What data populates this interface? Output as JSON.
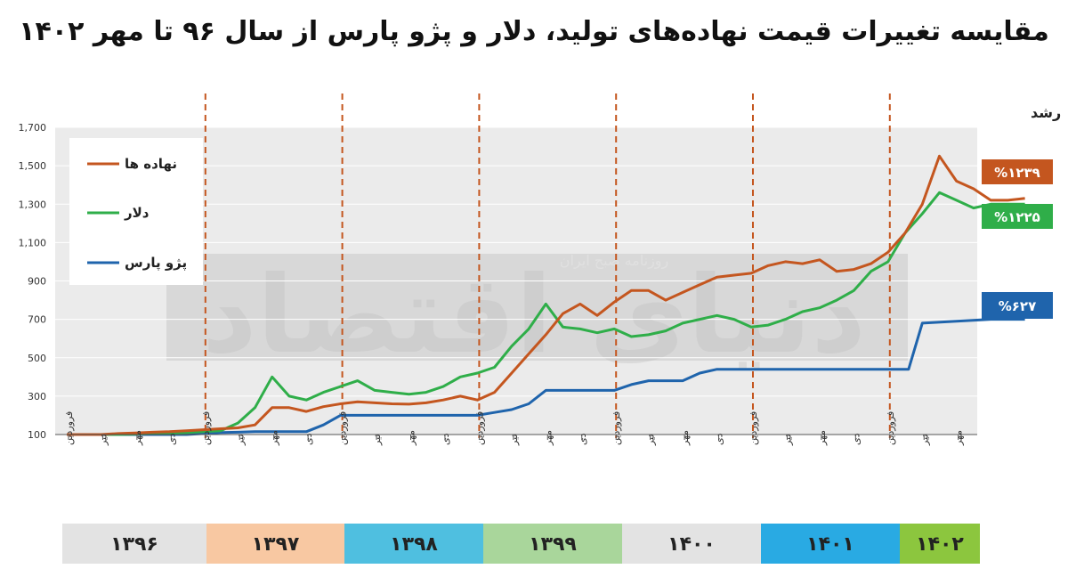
{
  "title": "مقایسه تغییرات قیمت نهاده‌های تولید، دلار و پژو پارس از سال ۹۶ تا مهر ۱۴۰۲",
  "watermark": {
    "brand": "دنیای اقتصاد",
    "tagline": "روزنامه صبح ایران"
  },
  "chart_data": {
    "type": "line",
    "ylim": [
      100,
      1700
    ],
    "yticks": [
      100,
      300,
      500,
      700,
      900,
      1100,
      1300,
      1500,
      1700
    ],
    "ytick_labels": [
      "100",
      "300",
      "500",
      "700",
      "900",
      "1,100",
      "1,300",
      "1,500",
      "1,700"
    ],
    "x_labels": [
      "فروردین",
      "تیر",
      "مهر",
      "دی",
      "فروردین",
      "تیر",
      "مهر",
      "دی",
      "فروردین",
      "تیر",
      "مهر",
      "دی",
      "فروردین",
      "تیر",
      "مهر",
      "دی",
      "فروردین",
      "تیر",
      "مهر",
      "دی",
      "فروردین",
      "تیر",
      "مهر",
      "دی",
      "فروردین",
      "تیر",
      "مهر"
    ],
    "year_markers": [
      4,
      8,
      12,
      16,
      20,
      24
    ],
    "growth_label": "رشد",
    "series": [
      {
        "name": "نهاده ها",
        "color": "#c4561f",
        "growth": "%۱۲۳۹",
        "points": [
          [
            0,
            100
          ],
          [
            1,
            100
          ],
          [
            1.5,
            105
          ],
          [
            2,
            108
          ],
          [
            2.5,
            112
          ],
          [
            3,
            115
          ],
          [
            3.5,
            120
          ],
          [
            4,
            125
          ],
          [
            4.5,
            130
          ],
          [
            5,
            135
          ],
          [
            5.5,
            150
          ],
          [
            6,
            240
          ],
          [
            6.5,
            240
          ],
          [
            7,
            220
          ],
          [
            7.5,
            245
          ],
          [
            8,
            260
          ],
          [
            8.5,
            270
          ],
          [
            9,
            265
          ],
          [
            9.5,
            260
          ],
          [
            10,
            258
          ],
          [
            10.5,
            265
          ],
          [
            11,
            280
          ],
          [
            11.5,
            300
          ],
          [
            12,
            280
          ],
          [
            12.5,
            320
          ],
          [
            13,
            420
          ],
          [
            13.5,
            520
          ],
          [
            14,
            620
          ],
          [
            14.5,
            730
          ],
          [
            15,
            780
          ],
          [
            15.5,
            720
          ],
          [
            16,
            790
          ],
          [
            16.5,
            850
          ],
          [
            17,
            850
          ],
          [
            17.5,
            800
          ],
          [
            18,
            840
          ],
          [
            18.5,
            880
          ],
          [
            19,
            920
          ],
          [
            19.5,
            930
          ],
          [
            20,
            940
          ],
          [
            20.5,
            980
          ],
          [
            21,
            1000
          ],
          [
            21.5,
            990
          ],
          [
            22,
            1010
          ],
          [
            22.5,
            950
          ],
          [
            23,
            960
          ],
          [
            23.5,
            990
          ],
          [
            24,
            1050
          ],
          [
            24.5,
            1150
          ],
          [
            25,
            1300
          ],
          [
            25.5,
            1550
          ],
          [
            26,
            1420
          ],
          [
            26.5,
            1380
          ],
          [
            27,
            1320
          ],
          [
            27.5,
            1320
          ],
          [
            28,
            1330
          ]
        ]
      },
      {
        "name": "دلار",
        "color": "#2fae49",
        "growth": "%۱۲۲۵",
        "points": [
          [
            0,
            100
          ],
          [
            1,
            100
          ],
          [
            1.5,
            100
          ],
          [
            2,
            102
          ],
          [
            2.5,
            105
          ],
          [
            3,
            108
          ],
          [
            3.5,
            110
          ],
          [
            4,
            115
          ],
          [
            4.5,
            120
          ],
          [
            5,
            160
          ],
          [
            5.5,
            240
          ],
          [
            6,
            400
          ],
          [
            6.5,
            300
          ],
          [
            7,
            280
          ],
          [
            7.5,
            320
          ],
          [
            8,
            350
          ],
          [
            8.5,
            380
          ],
          [
            9,
            330
          ],
          [
            9.5,
            320
          ],
          [
            10,
            310
          ],
          [
            10.5,
            320
          ],
          [
            11,
            350
          ],
          [
            11.5,
            400
          ],
          [
            12,
            420
          ],
          [
            12.5,
            450
          ],
          [
            13,
            560
          ],
          [
            13.5,
            650
          ],
          [
            14,
            780
          ],
          [
            14.5,
            660
          ],
          [
            15,
            650
          ],
          [
            15.5,
            630
          ],
          [
            16,
            650
          ],
          [
            16.5,
            610
          ],
          [
            17,
            620
          ],
          [
            17.5,
            640
          ],
          [
            18,
            680
          ],
          [
            18.5,
            700
          ],
          [
            19,
            720
          ],
          [
            19.5,
            700
          ],
          [
            20,
            660
          ],
          [
            20.5,
            670
          ],
          [
            21,
            700
          ],
          [
            21.5,
            740
          ],
          [
            22,
            760
          ],
          [
            22.5,
            800
          ],
          [
            23,
            850
          ],
          [
            23.5,
            950
          ],
          [
            24,
            1000
          ],
          [
            24.5,
            1150
          ],
          [
            25,
            1250
          ],
          [
            25.5,
            1360
          ],
          [
            26,
            1320
          ],
          [
            26.5,
            1280
          ],
          [
            27,
            1300
          ],
          [
            27.5,
            1300
          ],
          [
            28,
            1300
          ]
        ]
      },
      {
        "name": "پژو پارس",
        "color": "#1f64ac",
        "growth": "%۶۲۷",
        "points": [
          [
            0,
            100
          ],
          [
            3,
            100
          ],
          [
            3.5,
            100
          ],
          [
            4,
            105
          ],
          [
            4.5,
            110
          ],
          [
            5,
            112
          ],
          [
            5.5,
            115
          ],
          [
            6,
            115
          ],
          [
            7,
            115
          ],
          [
            7.5,
            150
          ],
          [
            8,
            200
          ],
          [
            9,
            200
          ],
          [
            12,
            200
          ],
          [
            12.5,
            215
          ],
          [
            13,
            230
          ],
          [
            13.5,
            260
          ],
          [
            14,
            330
          ],
          [
            15,
            330
          ],
          [
            16,
            330
          ],
          [
            16.5,
            360
          ],
          [
            17,
            380
          ],
          [
            18,
            380
          ],
          [
            18.5,
            420
          ],
          [
            19,
            440
          ],
          [
            20,
            440
          ],
          [
            21,
            440
          ],
          [
            22,
            440
          ],
          [
            23,
            440
          ],
          [
            24,
            440
          ],
          [
            24.3,
            440
          ],
          [
            24.6,
            440
          ],
          [
            25,
            680
          ],
          [
            26,
            690
          ],
          [
            27,
            700
          ],
          [
            28,
            700
          ]
        ]
      }
    ],
    "legend_position": "top-left"
  },
  "years": [
    {
      "label": "۱۳۹۶",
      "color": "#e3e3e3"
    },
    {
      "label": "۱۳۹۷",
      "color": "#f8c8a2"
    },
    {
      "label": "۱۳۹۸",
      "color": "#4fbfe0"
    },
    {
      "label": "۱۳۹۹",
      "color": "#a9d69b"
    },
    {
      "label": "۱۴۰۰",
      "color": "#e3e3e3"
    },
    {
      "label": "۱۴۰۱",
      "color": "#29aae3"
    },
    {
      "label": "۱۴۰۲",
      "color": "#8cc63e"
    }
  ]
}
